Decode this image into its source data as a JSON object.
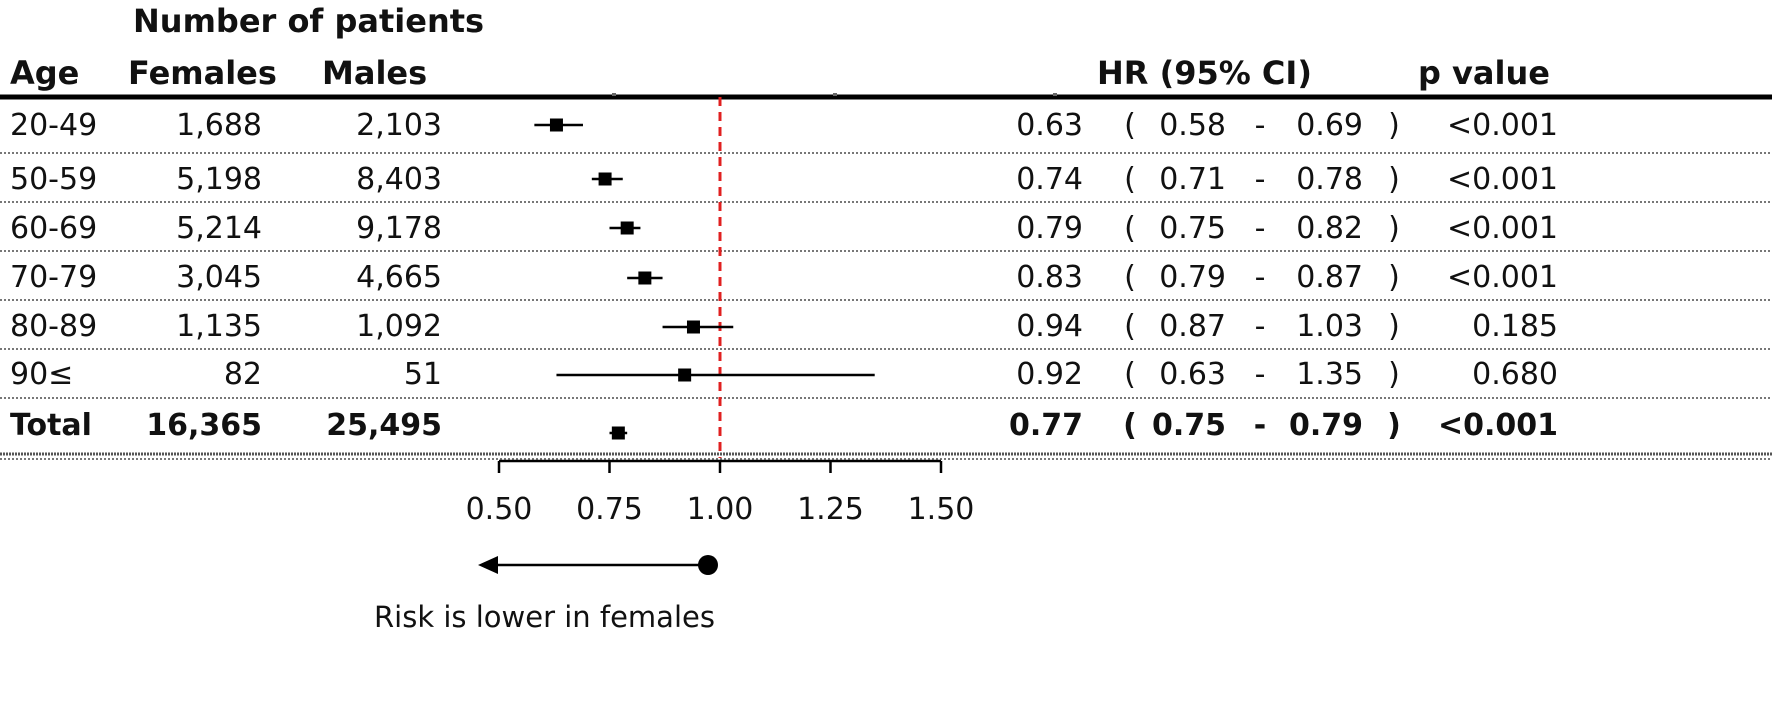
{
  "header": {
    "group_label": "Number of patients",
    "age": "Age",
    "females": "Females",
    "males": "Males",
    "hr": "HR (95% CI)",
    "p": "p value"
  },
  "rows": [
    {
      "age": "20-49",
      "females": "1,688",
      "males": "2,103",
      "hr": "0.63",
      "lo": "0.58",
      "hi": "0.69",
      "p": "<0.001",
      "bold": false
    },
    {
      "age": "50-59",
      "females": "5,198",
      "males": "8,403",
      "hr": "0.74",
      "lo": "0.71",
      "hi": "0.78",
      "p": "<0.001",
      "bold": false
    },
    {
      "age": "60-69",
      "females": "5,214",
      "males": "9,178",
      "hr": "0.79",
      "lo": "0.75",
      "hi": "0.82",
      "p": "<0.001",
      "bold": false
    },
    {
      "age": "70-79",
      "females": "3,045",
      "males": "4,665",
      "hr": "0.83",
      "lo": "0.79",
      "hi": "0.87",
      "p": "<0.001",
      "bold": false
    },
    {
      "age": "80-89",
      "females": "1,135",
      "males": "1,092",
      "hr": "0.94",
      "lo": "0.87",
      "hi": "1.03",
      "p": "0.185",
      "bold": false
    },
    {
      "age": "90≤",
      "females": "82",
      "males": "51",
      "hr": "0.92",
      "lo": "0.63",
      "hi": "1.35",
      "p": "0.680",
      "bold": false
    },
    {
      "age": "Total",
      "females": "16,365",
      "males": "25,495",
      "hr": "0.77",
      "lo": "0.75",
      "hi": "0.79",
      "p": "<0.001",
      "bold": true
    }
  ],
  "chart_data": {
    "type": "forest",
    "categories": [
      "20-49",
      "50-59",
      "60-69",
      "70-79",
      "80-89",
      "90≤",
      "Total"
    ],
    "estimates": [
      0.63,
      0.74,
      0.79,
      0.83,
      0.94,
      0.92,
      0.77
    ],
    "ci_lower": [
      0.58,
      0.71,
      0.75,
      0.79,
      0.87,
      0.63,
      0.75
    ],
    "ci_upper": [
      0.69,
      0.78,
      0.82,
      0.87,
      1.03,
      1.35,
      0.79
    ],
    "xlim": [
      0.5,
      1.5
    ],
    "xticks": [
      "0.50",
      "0.75",
      "1.00",
      "1.25",
      "1.50"
    ],
    "reference_line": 1.0,
    "reference_color": "#e02020",
    "annotation": "Risk is lower in females"
  },
  "symbols": {
    "open_paren": "(",
    "dash": "-",
    "close_paren": ")"
  }
}
